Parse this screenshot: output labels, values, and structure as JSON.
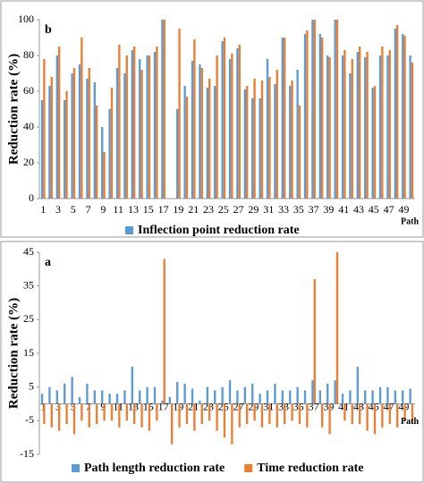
{
  "chart_data": [
    {
      "type": "bar",
      "title": "b",
      "y_label": "Reduction rate (%)",
      "x_label": "Path",
      "categories": [
        "1",
        null,
        "3",
        null,
        "5",
        null,
        "7",
        null,
        "9",
        null,
        "11",
        null,
        "13",
        null,
        "15",
        null,
        "17",
        null,
        "19",
        null,
        "21",
        null,
        "23",
        null,
        "25",
        null,
        "27",
        null,
        "29",
        null,
        "31",
        null,
        "33",
        null,
        "35",
        null,
        "37",
        null,
        "39",
        null,
        "41",
        null,
        "43",
        null,
        "45",
        null,
        "47",
        null,
        "49",
        null
      ],
      "series": [
        {
          "name": "Inflection point reduction rate",
          "color": "#5b9bd5",
          "values": [
            55,
            63,
            80,
            55,
            70,
            75,
            67,
            65,
            40,
            50,
            73,
            70,
            83,
            78,
            80,
            82,
            100,
            0,
            50,
            63,
            77,
            75,
            62,
            63,
            88,
            78,
            84,
            61,
            56,
            56,
            78,
            64,
            90,
            63,
            72,
            92,
            100,
            92,
            80,
            100,
            80,
            70,
            82,
            79,
            62,
            80,
            80,
            95,
            92,
            80
          ]
        },
        {
          "color": "#ed7d31",
          "values": [
            78,
            68,
            85,
            60,
            73,
            90,
            73,
            52,
            26,
            62,
            86,
            80,
            85,
            72,
            80,
            85,
            100,
            0,
            95,
            57,
            89,
            73,
            67,
            80,
            90,
            81,
            86,
            63,
            67,
            66,
            68,
            72,
            90,
            66,
            52,
            94,
            100,
            90,
            79,
            100,
            83,
            78,
            85,
            82,
            63,
            85,
            83,
            97,
            91,
            76
          ]
        }
      ],
      "ylim": [
        0,
        100
      ],
      "yticks": [
        0,
        20,
        40,
        60,
        80,
        100
      ],
      "grid": false
    },
    {
      "type": "bar",
      "title": "a",
      "y_label": "Reduction rate (%)",
      "x_label": "Path",
      "categories": [
        "1",
        null,
        "3",
        null,
        "5",
        null,
        "7",
        null,
        "9",
        null,
        "11",
        null,
        "13",
        null,
        "15",
        null,
        "17",
        null,
        "19",
        null,
        "21",
        null,
        "23",
        null,
        "25",
        null,
        "27",
        null,
        "29",
        null,
        "31",
        null,
        "33",
        null,
        "35",
        null,
        "37",
        null,
        "39",
        null,
        "41",
        null,
        "43",
        null,
        "45",
        null,
        "47",
        null,
        "49",
        null
      ],
      "series": [
        {
          "name": "Path length reduction rate",
          "color": "#5b9bd5",
          "values": [
            3,
            5,
            4,
            6,
            8,
            2,
            6,
            4,
            4,
            3,
            3,
            4,
            11,
            4,
            5,
            5,
            1,
            2,
            6.5,
            6,
            4.5,
            1,
            5,
            4,
            5,
            7,
            4,
            5,
            6,
            3,
            4,
            6,
            4,
            4,
            5,
            4,
            7,
            4,
            6,
            7,
            3,
            4,
            11,
            4,
            4,
            5,
            5,
            4,
            4,
            4.5
          ]
        },
        {
          "name": "Time reduction rate",
          "color": "#ed7d31",
          "values": [
            -6,
            -7,
            -8,
            -6,
            -9,
            -5,
            -7,
            -6,
            -5,
            -5,
            -7,
            -5,
            -6,
            -7,
            -8,
            -5,
            43,
            -12,
            -7,
            -6,
            -8,
            -6,
            -5,
            -8,
            -10,
            -12,
            -7,
            -6,
            -5,
            -7,
            -6,
            -7,
            -6,
            -5,
            -6,
            -7,
            37,
            -7,
            -9,
            45,
            -5,
            -6,
            -6,
            -8,
            -9,
            -7,
            -6,
            -7,
            -5,
            -6
          ]
        }
      ],
      "ylim": [
        -15,
        45
      ],
      "yticks": [
        -15,
        -5,
        5,
        15,
        25,
        35,
        45
      ],
      "grid": false
    }
  ]
}
